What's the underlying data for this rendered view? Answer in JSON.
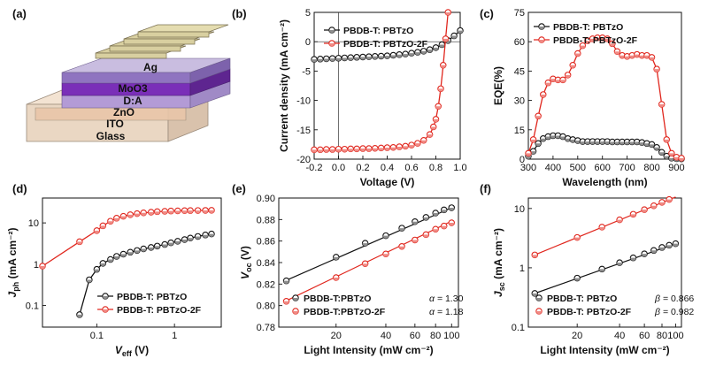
{
  "colors": {
    "black": "#111111",
    "red": "#e0261d",
    "red_fill": "#f08a84",
    "grey_fill": "#8e8e8e"
  },
  "panel_a": {
    "label": "(a)",
    "layers": [
      "Ag",
      "MoO3",
      "D:A",
      "ZnO",
      "ITO",
      "Glass"
    ]
  },
  "chart_data": [
    {
      "id": "b",
      "panel_label": "(b)",
      "type": "line",
      "xlabel": "Voltage (V)",
      "ylabel": "Current density (mA cm⁻²)",
      "xlim": [
        -0.2,
        1.0
      ],
      "ylim": [
        -20,
        5
      ],
      "xticks": [
        -0.2,
        0.0,
        0.2,
        0.4,
        0.6,
        0.8,
        1.0
      ],
      "xtick_labels": [
        "-0.2",
        "0.0",
        "0.2",
        "0.4",
        "0.6",
        "0.8",
        "1.0"
      ],
      "yticks": [
        -20,
        -15,
        -10,
        -5,
        0,
        5
      ],
      "ytick_labels": [
        "-20",
        "-15",
        "-10",
        "-5",
        "0",
        "5"
      ],
      "zero_lines": true,
      "legend_position": "top-right",
      "series": [
        {
          "name": "PBDB-T: PBTzO",
          "color": "black",
          "x": [
            -0.2,
            -0.15,
            -0.1,
            -0.05,
            0.0,
            0.05,
            0.1,
            0.15,
            0.2,
            0.25,
            0.3,
            0.35,
            0.4,
            0.45,
            0.5,
            0.55,
            0.6,
            0.65,
            0.7,
            0.75,
            0.8,
            0.85,
            0.9,
            0.95,
            1.0
          ],
          "y": [
            -3.0,
            -2.95,
            -2.9,
            -2.85,
            -2.8,
            -2.75,
            -2.7,
            -2.65,
            -2.6,
            -2.55,
            -2.5,
            -2.45,
            -2.4,
            -2.3,
            -2.2,
            -2.1,
            -1.95,
            -1.8,
            -1.6,
            -1.35,
            -1.0,
            -0.5,
            0.2,
            1.0,
            1.9
          ]
        },
        {
          "name": "PBDB-T: PBTzO-2F",
          "color": "red",
          "x": [
            -0.2,
            -0.15,
            -0.1,
            -0.05,
            0.0,
            0.05,
            0.1,
            0.15,
            0.2,
            0.25,
            0.3,
            0.35,
            0.4,
            0.45,
            0.5,
            0.55,
            0.6,
            0.65,
            0.7,
            0.75,
            0.78,
            0.8,
            0.82,
            0.84,
            0.86,
            0.88,
            0.9
          ],
          "y": [
            -18.4,
            -18.4,
            -18.35,
            -18.35,
            -18.3,
            -18.3,
            -18.25,
            -18.25,
            -18.2,
            -18.2,
            -18.15,
            -18.1,
            -18.05,
            -18.0,
            -17.9,
            -17.8,
            -17.6,
            -17.3,
            -16.8,
            -15.8,
            -14.5,
            -13.2,
            -11.0,
            -8.0,
            -4.0,
            0.5,
            5.0
          ]
        }
      ]
    },
    {
      "id": "c",
      "panel_label": "(c)",
      "type": "line",
      "xlabel": "Wavelength (nm)",
      "ylabel": "EQE(%)",
      "xlim": [
        300,
        920
      ],
      "ylim": [
        0,
        75
      ],
      "xticks": [
        300,
        400,
        500,
        600,
        700,
        800,
        900
      ],
      "xtick_labels": [
        "300",
        "400",
        "500",
        "600",
        "700",
        "800",
        "900"
      ],
      "yticks": [
        0,
        15,
        30,
        45,
        60,
        75
      ],
      "ytick_labels": [
        "0",
        "15",
        "30",
        "45",
        "60",
        "75"
      ],
      "legend_position": "top-left",
      "series": [
        {
          "name": "PBDB-T: PBTzO",
          "color": "black",
          "x": [
            300,
            320,
            340,
            360,
            380,
            400,
            420,
            440,
            460,
            480,
            500,
            520,
            540,
            560,
            580,
            600,
            620,
            640,
            660,
            680,
            700,
            720,
            740,
            760,
            780,
            800,
            820,
            840,
            860,
            880,
            900,
            920
          ],
          "y": [
            1.5,
            4.0,
            8.0,
            10.5,
            11.5,
            12.0,
            12.0,
            11.5,
            10.5,
            10.0,
            9.5,
            9.0,
            9.0,
            9.0,
            9.0,
            9.0,
            9.0,
            8.8,
            8.8,
            8.8,
            8.8,
            8.8,
            8.8,
            8.5,
            8.0,
            7.5,
            6.0,
            3.5,
            1.5,
            0.5,
            0.2,
            0.1
          ]
        },
        {
          "name": "PBDB-T: PBTzO-2F",
          "color": "red",
          "x": [
            300,
            320,
            340,
            360,
            380,
            400,
            420,
            440,
            460,
            480,
            500,
            520,
            540,
            560,
            580,
            600,
            620,
            640,
            660,
            680,
            700,
            720,
            740,
            760,
            780,
            800,
            820,
            840,
            860,
            880,
            900,
            920
          ],
          "y": [
            3.0,
            10.0,
            22.0,
            33.0,
            39.0,
            41.0,
            40.5,
            40.5,
            43.0,
            48.0,
            54.0,
            58.0,
            60.5,
            61.5,
            62.0,
            62.0,
            61.5,
            59.0,
            55.0,
            53.0,
            52.5,
            53.0,
            53.5,
            53.0,
            53.0,
            52.0,
            46.0,
            28.0,
            10.0,
            3.0,
            1.0,
            0.5
          ]
        }
      ]
    },
    {
      "id": "d",
      "panel_label": "(d)",
      "type": "line",
      "xlabel": "V",
      "xlabel_sub": "eff",
      "xlabel_suffix": " (V)",
      "ylabel": "J",
      "ylabel_sub": "ph",
      "ylabel_suffix": " (mA cm⁻²)",
      "xscale": "log",
      "yscale": "log",
      "xlim": [
        0.02,
        4.0
      ],
      "ylim": [
        0.03,
        40
      ],
      "xticks": [
        0.1,
        1
      ],
      "xtick_labels": [
        "0.1",
        "1"
      ],
      "yticks": [
        0.1,
        1,
        10
      ],
      "ytick_labels": [
        "0.1",
        "1",
        "10"
      ],
      "legend_position": "bottom-right",
      "series": [
        {
          "name": "PBDB-T: PBTzO",
          "color": "black",
          "x": [
            0.06,
            0.08,
            0.1,
            0.12,
            0.15,
            0.18,
            0.22,
            0.27,
            0.33,
            0.4,
            0.5,
            0.6,
            0.75,
            0.9,
            1.1,
            1.35,
            1.6,
            2.0,
            2.5,
            3.0
          ],
          "y": [
            0.06,
            0.42,
            0.75,
            1.05,
            1.3,
            1.55,
            1.75,
            1.95,
            2.15,
            2.35,
            2.55,
            2.75,
            3.0,
            3.3,
            3.6,
            3.95,
            4.3,
            4.7,
            5.1,
            5.4
          ]
        },
        {
          "name": "PBDB-T: PBTzO-2F",
          "color": "red",
          "x": [
            0.02,
            0.06,
            0.1,
            0.12,
            0.15,
            0.18,
            0.22,
            0.27,
            0.33,
            0.4,
            0.5,
            0.6,
            0.75,
            0.9,
            1.1,
            1.35,
            1.6,
            2.0,
            2.5,
            3.0
          ],
          "y": [
            0.9,
            3.5,
            6.5,
            8.5,
            11.0,
            13.0,
            14.5,
            15.8,
            16.8,
            17.5,
            18.2,
            18.7,
            19.1,
            19.4,
            19.6,
            19.8,
            19.9,
            20.0,
            20.1,
            20.2
          ]
        }
      ]
    },
    {
      "id": "e",
      "panel_label": "(e)",
      "type": "scatter",
      "xlabel": "Light Intensity (mW cm⁻²)",
      "ylabel": "V",
      "ylabel_sub": "oc",
      "ylabel_suffix": " (V)",
      "xscale": "log",
      "xlim": [
        9,
        110
      ],
      "ylim": [
        0.78,
        0.9
      ],
      "xticks": [
        20,
        40,
        60,
        80,
        100
      ],
      "xtick_labels": [
        "20",
        "40",
        "60",
        "80",
        "100"
      ],
      "yticks": [
        0.78,
        0.8,
        0.82,
        0.84,
        0.86,
        0.88,
        0.9
      ],
      "ytick_labels": [
        "0.78",
        "0.80",
        "0.82",
        "0.84",
        "0.86",
        "0.88",
        "0.90"
      ],
      "legend_position": "bottom",
      "series": [
        {
          "name": "PBDB-T:PBTzO",
          "color": "black",
          "annotation_label": "α = ",
          "annotation_value": "1.30",
          "x": [
            10,
            20,
            30,
            40,
            50,
            60,
            70,
            80,
            90,
            100
          ],
          "y": [
            0.823,
            0.845,
            0.858,
            0.865,
            0.872,
            0.878,
            0.882,
            0.886,
            0.889,
            0.891
          ],
          "fit_x": [
            10,
            100
          ],
          "fit_y": [
            0.8235,
            0.891
          ]
        },
        {
          "name": "PBDB-T:PBTzO-2F",
          "color": "red",
          "annotation_label": "α = ",
          "annotation_value": "1.18",
          "x": [
            10,
            20,
            30,
            40,
            50,
            60,
            70,
            80,
            90,
            100
          ],
          "y": [
            0.804,
            0.826,
            0.839,
            0.848,
            0.855,
            0.861,
            0.866,
            0.871,
            0.874,
            0.877
          ],
          "fit_x": [
            10,
            100
          ],
          "fit_y": [
            0.8045,
            0.8785
          ]
        }
      ]
    },
    {
      "id": "f",
      "panel_label": "(f)",
      "type": "scatter",
      "xlabel": "Light Intensity (mW cm⁻²)",
      "ylabel": "J",
      "ylabel_sub": "sc",
      "ylabel_suffix": " (mA cm⁻²)",
      "xscale": "log",
      "yscale": "log",
      "xlim": [
        9,
        110
      ],
      "ylim": [
        0.1,
        15
      ],
      "xticks": [
        20,
        40,
        60,
        80,
        100
      ],
      "xtick_labels": [
        "20",
        "40",
        "60",
        "80",
        "100"
      ],
      "yticks": [
        0.1,
        1,
        10
      ],
      "ytick_labels": [
        "0.1",
        "1",
        "10"
      ],
      "legend_position": "bottom",
      "series": [
        {
          "name": "PBDB-T: PBTzO",
          "color": "black",
          "annotation_label": "β = ",
          "annotation_value": "0.866",
          "x": [
            10,
            20,
            30,
            40,
            50,
            60,
            70,
            80,
            90,
            100
          ],
          "y": [
            0.37,
            0.67,
            0.95,
            1.22,
            1.47,
            1.72,
            1.96,
            2.2,
            2.4,
            2.55
          ],
          "fit_x": [
            10,
            100
          ],
          "fit_y": [
            0.37,
            2.55
          ]
        },
        {
          "name": "PBDB-T: PBTzO-2F",
          "color": "red",
          "annotation_label": "β = ",
          "annotation_value": "0.982",
          "x": [
            10,
            20,
            30,
            40,
            50,
            60,
            70,
            80,
            90,
            100
          ],
          "y": [
            1.65,
            3.25,
            4.85,
            6.45,
            8.0,
            9.55,
            11.1,
            12.7,
            14.2,
            15.6
          ],
          "fit_x": [
            10,
            100
          ],
          "fit_y": [
            1.65,
            15.6
          ]
        }
      ]
    }
  ]
}
